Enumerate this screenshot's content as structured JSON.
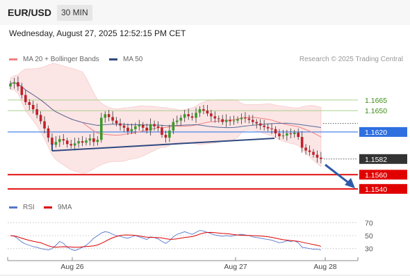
{
  "header": {
    "pair": "EUR/USD",
    "timeframe": "30 MIN"
  },
  "datetime": "Wednesday, August 27, 2025 12:52:15 PM CET",
  "legend": {
    "ma20": {
      "label": "MA 20 + Bollinger Bands",
      "color": "#f08080"
    },
    "ma50": {
      "label": "MA 50",
      "color": "#2e4a80"
    },
    "credit": "Research © 2025 Trading Central"
  },
  "rsi_legend": {
    "rsi": {
      "label": "RSI",
      "color": "#5577cc"
    },
    "ma9": {
      "label": "9MA",
      "color": "#dd0000"
    }
  },
  "chart_data": {
    "type": "candlestick",
    "price_range": [
      1.1532,
      1.17
    ],
    "levels": [
      {
        "value": 1.1665,
        "label": "1.1665",
        "style": "resistance-green"
      },
      {
        "value": 1.165,
        "label": "1.1650",
        "style": "resistance-green"
      },
      {
        "value": 1.162,
        "label": "1.1620",
        "style": "pivot-blue"
      },
      {
        "value": 1.1582,
        "label": "1.1582",
        "style": "last-price"
      },
      {
        "value": 1.156,
        "label": "1.1560",
        "style": "support-red"
      },
      {
        "value": 1.154,
        "label": "1.1540",
        "style": "support-red"
      }
    ],
    "x_labels": [
      "Aug 26",
      "Aug 27",
      "Aug 28"
    ],
    "rsi_range": [
      20,
      80
    ],
    "rsi_levels": [
      "70",
      "50",
      "30"
    ],
    "closes": [
      1.1688,
      1.169,
      1.1684,
      1.1672,
      1.1662,
      1.1658,
      1.1652,
      1.1644,
      1.1635,
      1.1625,
      1.1612,
      1.1602,
      1.1606,
      1.161,
      1.1608,
      1.1603,
      1.1601,
      1.1604,
      1.1607,
      1.1605,
      1.1608,
      1.1611,
      1.1606,
      1.1609,
      1.164,
      1.1645,
      1.1641,
      1.1636,
      1.1632,
      1.1629,
      1.1626,
      1.1621,
      1.1624,
      1.1628,
      1.163,
      1.1626,
      1.1622,
      1.1631,
      1.1628,
      1.1626,
      1.1616,
      1.1612,
      1.1622,
      1.1634,
      1.1636,
      1.164,
      1.1645,
      1.1642,
      1.164,
      1.1647,
      1.1652,
      1.165,
      1.1646,
      1.1642,
      1.1639,
      1.1638,
      1.1634,
      1.1637,
      1.1635,
      1.1636,
      1.1638,
      1.164,
      1.1639,
      1.1637,
      1.1634,
      1.1632,
      1.1629,
      1.1627,
      1.1625,
      1.1624,
      1.1618,
      1.1614,
      1.1615,
      1.1618,
      1.1617,
      1.1619,
      1.1613,
      1.1598,
      1.1594,
      1.1592,
      1.1588,
      1.1584,
      1.1582
    ],
    "rsi": [
      50,
      49,
      45,
      40,
      37,
      35,
      33,
      32,
      30,
      29,
      28,
      30,
      35,
      41,
      38,
      32,
      29,
      27,
      29,
      32,
      35,
      40,
      46,
      50,
      54,
      56,
      55,
      52,
      50,
      49,
      47,
      46,
      48,
      50,
      48,
      46,
      44,
      48,
      47,
      45,
      41,
      38,
      42,
      48,
      52,
      54,
      56,
      54,
      52,
      55,
      58,
      57,
      55,
      53,
      51,
      50,
      49,
      50,
      49,
      50,
      51,
      52,
      51,
      50,
      48,
      47,
      46,
      45,
      44,
      43,
      41,
      39,
      40,
      42,
      41,
      42,
      39,
      32,
      31,
      30,
      29,
      29,
      28
    ]
  }
}
